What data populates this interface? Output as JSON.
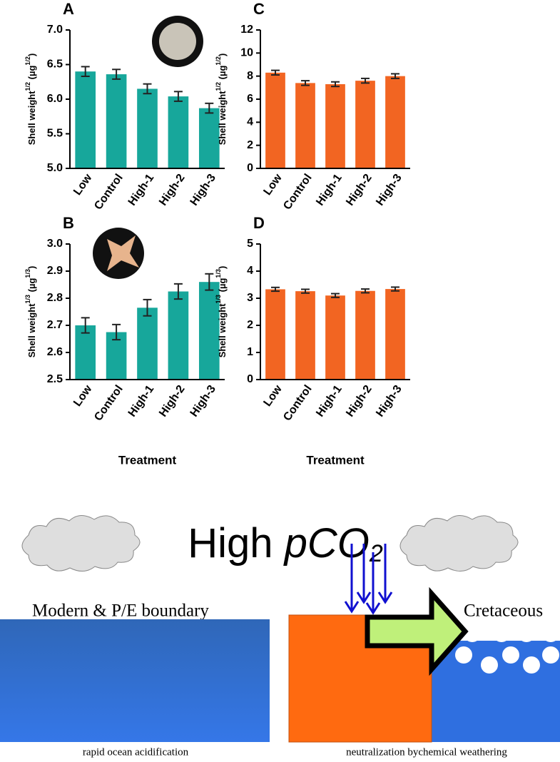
{
  "chart_data": [
    {
      "type": "bar",
      "title": "A",
      "color": "#17a79b",
      "ylabel": [
        {
          "text": "Shell weight"
        },
        {
          "sup": "1/2"
        },
        {
          "text": " (µg"
        },
        {
          "sup": "1/2"
        },
        {
          "text": ")"
        }
      ],
      "categories": [
        "Low",
        "Control",
        "High-1",
        "High-2",
        "High-3"
      ],
      "values": [
        6.4,
        6.36,
        6.15,
        6.04,
        5.87
      ],
      "errors": [
        0.07,
        0.07,
        0.07,
        0.07,
        0.07
      ],
      "ylim": [
        5,
        7
      ],
      "yticks": [
        {
          "value": 5,
          "label": "5.0"
        },
        {
          "value": 5.5,
          "label": "5.5"
        },
        {
          "value": 6,
          "label": "6.0"
        },
        {
          "value": 6.5,
          "label": "6.5"
        },
        {
          "value": 7,
          "label": "7.0"
        }
      ]
    },
    {
      "type": "bar",
      "title": "C",
      "color": "#f26522",
      "ylabel": [
        {
          "text": "Shell weight"
        },
        {
          "sup": "1/2"
        },
        {
          "text": " (µg"
        },
        {
          "sup": "1/2"
        },
        {
          "text": ")"
        }
      ],
      "categories": [
        "Low",
        "Control",
        "High-1",
        "High-2",
        "High-3"
      ],
      "values": [
        8.3,
        7.4,
        7.3,
        7.6,
        8.0
      ],
      "errors": [
        0.2,
        0.2,
        0.2,
        0.2,
        0.2
      ],
      "ylim": [
        0,
        12
      ],
      "yticks": [
        0,
        2,
        4,
        6,
        8,
        10,
        12
      ]
    },
    {
      "type": "bar",
      "title": "B",
      "color": "#17a79b",
      "xlabel": "Treatment",
      "ylabel": [
        {
          "text": "Shell weight"
        },
        {
          "sup": "1/3"
        },
        {
          "text": " (µg"
        },
        {
          "sup": "1/3"
        },
        {
          "text": ")"
        }
      ],
      "categories": [
        "Low",
        "Control",
        "High-1",
        "High-2",
        "High-3"
      ],
      "values": [
        2.7,
        2.675,
        2.765,
        2.825,
        2.86
      ],
      "errors": [
        0.028,
        0.028,
        0.03,
        0.028,
        0.03
      ],
      "ylim": [
        2.5,
        3
      ],
      "yticks": [
        {
          "value": 2.5,
          "label": "2.5"
        },
        {
          "value": 2.6,
          "label": "2.6"
        },
        {
          "value": 2.7,
          "label": "2.7"
        },
        {
          "value": 2.8,
          "label": "2.8"
        },
        {
          "value": 2.9,
          "label": "2.9"
        },
        {
          "value": 3,
          "label": "3.0"
        }
      ]
    },
    {
      "type": "bar",
      "title": "D",
      "color": "#f26522",
      "xlabel": "Treatment",
      "ylabel": [
        {
          "text": "Shell weight"
        },
        {
          "sup": "1/3"
        },
        {
          "text": " (µg"
        },
        {
          "sup": "1/3"
        },
        {
          "text": ")"
        }
      ],
      "categories": [
        "Low",
        "Control",
        "High-1",
        "High-2",
        "High-3"
      ],
      "values": [
        3.33,
        3.26,
        3.1,
        3.27,
        3.34
      ],
      "errors": [
        0.07,
        0.07,
        0.07,
        0.07,
        0.07
      ],
      "ylim": [
        0,
        5
      ],
      "yticks": [
        0,
        1,
        2,
        3,
        4,
        5
      ]
    }
  ],
  "diagram": {
    "title": {
      "plain": "High ",
      "italic": "pCO",
      "sub": "2"
    },
    "left_label": "Modern & P/E boundary",
    "right_label": "Cretaceous",
    "left_caption": "rapid ocean acidification",
    "right_caption": "neutralization bychemical weathering"
  }
}
